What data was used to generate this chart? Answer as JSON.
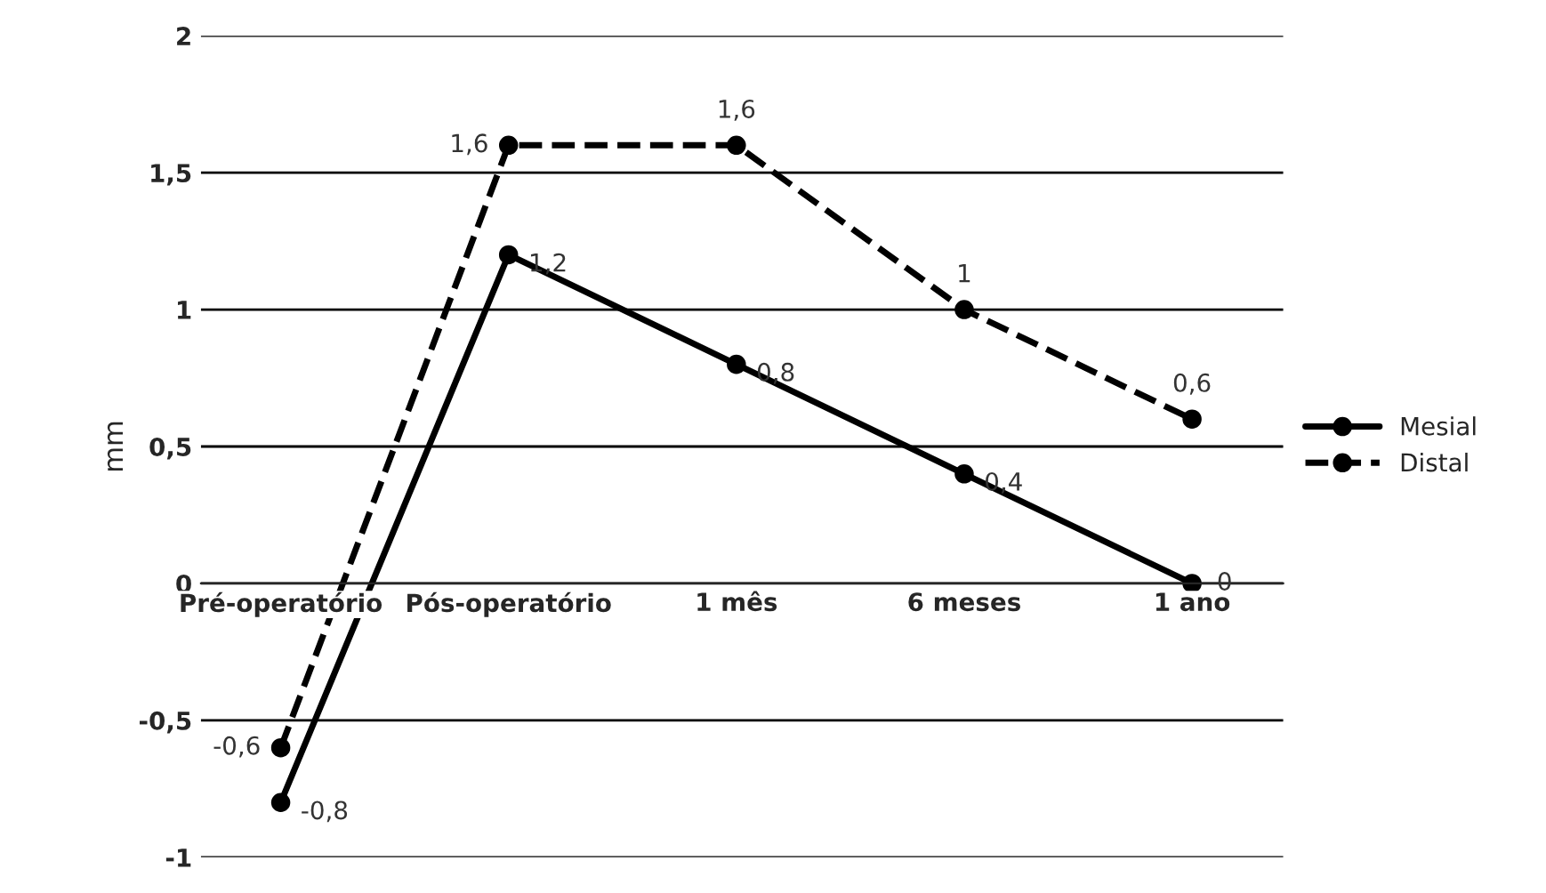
{
  "chart_data": {
    "type": "line",
    "ylabel": "mm",
    "categories": [
      "Pré-operatório",
      "Pós-operatório",
      "1 mês",
      "6 meses",
      "1 ano"
    ],
    "series": [
      {
        "name": "Mesial",
        "color": "#000000",
        "line_style": "solid",
        "values": [
          -0.8,
          1.2,
          0.8,
          0.4,
          0
        ],
        "value_labels": [
          "-0,8",
          "1,2",
          "0,8",
          "0,4",
          "0"
        ]
      },
      {
        "name": "Distal",
        "color": "#000000",
        "line_style": "dashed",
        "values": [
          -0.6,
          1.6,
          1.6,
          1,
          0.6
        ],
        "value_labels": [
          "-0,6",
          "1,6",
          "1,6",
          "1",
          "0,6"
        ]
      }
    ],
    "ylim": [
      -1,
      2
    ],
    "yticks": [
      {
        "value": -1,
        "label": "-1"
      },
      {
        "value": -0.5,
        "label": "-0,5"
      },
      {
        "value": 0,
        "label": "0"
      },
      {
        "value": 0.5,
        "label": "0,5"
      },
      {
        "value": 1,
        "label": "1"
      },
      {
        "value": 1.5,
        "label": "1,5"
      },
      {
        "value": 2,
        "label": "2"
      }
    ],
    "grid": "y",
    "legend": "right",
    "marker": "circle"
  }
}
